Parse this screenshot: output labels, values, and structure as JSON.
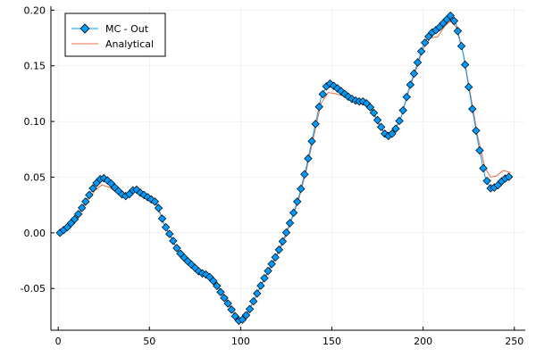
{
  "chart_data": {
    "type": "line",
    "title": "",
    "xlabel": "",
    "ylabel": "",
    "xlim": [
      -4,
      256
    ],
    "ylim": [
      -0.0875,
      0.2035
    ],
    "xticks": [
      0,
      50,
      100,
      150,
      200,
      250
    ],
    "xtick_labels": [
      "0",
      "50",
      "100",
      "150",
      "200",
      "250"
    ],
    "yticks": [
      -0.05,
      0.0,
      0.05,
      0.1,
      0.15,
      0.2
    ],
    "ytick_labels": [
      "-0.05",
      "0.00",
      "0.05",
      "0.10",
      "0.15",
      "0.20"
    ],
    "grid": true,
    "legend": {
      "position": "top-left"
    },
    "series": [
      {
        "name": "MC - Out",
        "color": "#009AFA",
        "marker": "diamond",
        "marker_stroke": "#000000",
        "line": true,
        "points": [
          [
            1,
            0.0
          ],
          [
            5,
            0.005
          ],
          [
            10,
            0.014
          ],
          [
            15,
            0.028
          ],
          [
            20,
            0.043
          ],
          [
            24,
            0.05
          ],
          [
            28,
            0.046
          ],
          [
            32,
            0.039
          ],
          [
            36,
            0.033
          ],
          [
            38,
            0.033
          ],
          [
            42,
            0.04
          ],
          [
            45,
            0.036
          ],
          [
            50,
            0.031
          ],
          [
            54,
            0.027
          ],
          [
            58,
            0.008
          ],
          [
            62,
            -0.004
          ],
          [
            66,
            -0.017
          ],
          [
            70,
            -0.024
          ],
          [
            74,
            -0.03
          ],
          [
            78,
            -0.036
          ],
          [
            82,
            -0.038
          ],
          [
            86,
            -0.045
          ],
          [
            90,
            -0.056
          ],
          [
            94,
            -0.066
          ],
          [
            98,
            -0.078
          ],
          [
            100,
            -0.08
          ],
          [
            104,
            -0.072
          ],
          [
            108,
            -0.058
          ],
          [
            112,
            -0.044
          ],
          [
            116,
            -0.031
          ],
          [
            120,
            -0.019
          ],
          [
            124,
            -0.004
          ],
          [
            128,
            0.013
          ],
          [
            132,
            0.033
          ],
          [
            136,
            0.059
          ],
          [
            140,
            0.09
          ],
          [
            144,
            0.121
          ],
          [
            148,
            0.135
          ],
          [
            152,
            0.131
          ],
          [
            156,
            0.126
          ],
          [
            160,
            0.121
          ],
          [
            164,
            0.118
          ],
          [
            168,
            0.118
          ],
          [
            172,
            0.111
          ],
          [
            176,
            0.098
          ],
          [
            180,
            0.086
          ],
          [
            184,
            0.09
          ],
          [
            188,
            0.104
          ],
          [
            192,
            0.128
          ],
          [
            196,
            0.148
          ],
          [
            200,
            0.168
          ],
          [
            204,
            0.179
          ],
          [
            208,
            0.183
          ],
          [
            212,
            0.19
          ],
          [
            215,
            0.195
          ],
          [
            218,
            0.188
          ],
          [
            222,
            0.161
          ],
          [
            226,
            0.121
          ],
          [
            230,
            0.082
          ],
          [
            234,
            0.05
          ],
          [
            237,
            0.04
          ],
          [
            240,
            0.041
          ],
          [
            244,
            0.048
          ],
          [
            248,
            0.051
          ]
        ]
      },
      {
        "name": "Analytical",
        "color": "#E26F46",
        "marker": "none",
        "line": true,
        "points": [
          [
            1,
            0.0
          ],
          [
            5,
            0.004
          ],
          [
            10,
            0.013
          ],
          [
            15,
            0.026
          ],
          [
            20,
            0.038
          ],
          [
            24,
            0.043
          ],
          [
            28,
            0.041
          ],
          [
            32,
            0.036
          ],
          [
            36,
            0.034
          ],
          [
            38,
            0.034
          ],
          [
            42,
            0.039
          ],
          [
            45,
            0.035
          ],
          [
            50,
            0.029
          ],
          [
            54,
            0.025
          ],
          [
            58,
            0.008
          ],
          [
            62,
            -0.005
          ],
          [
            66,
            -0.017
          ],
          [
            70,
            -0.023
          ],
          [
            74,
            -0.029
          ],
          [
            78,
            -0.035
          ],
          [
            82,
            -0.037
          ],
          [
            86,
            -0.043
          ],
          [
            90,
            -0.054
          ],
          [
            94,
            -0.064
          ],
          [
            98,
            -0.075
          ],
          [
            100,
            -0.078
          ],
          [
            104,
            -0.071
          ],
          [
            108,
            -0.058
          ],
          [
            112,
            -0.045
          ],
          [
            116,
            -0.033
          ],
          [
            120,
            -0.02
          ],
          [
            124,
            -0.006
          ],
          [
            128,
            0.012
          ],
          [
            132,
            0.031
          ],
          [
            136,
            0.056
          ],
          [
            140,
            0.086
          ],
          [
            144,
            0.116
          ],
          [
            148,
            0.126
          ],
          [
            152,
            0.125
          ],
          [
            156,
            0.123
          ],
          [
            160,
            0.12
          ],
          [
            164,
            0.116
          ],
          [
            168,
            0.117
          ],
          [
            172,
            0.11
          ],
          [
            176,
            0.096
          ],
          [
            180,
            0.087
          ],
          [
            184,
            0.091
          ],
          [
            188,
            0.104
          ],
          [
            192,
            0.127
          ],
          [
            196,
            0.146
          ],
          [
            200,
            0.165
          ],
          [
            204,
            0.175
          ],
          [
            208,
            0.176
          ],
          [
            212,
            0.186
          ],
          [
            215,
            0.19
          ],
          [
            218,
            0.185
          ],
          [
            222,
            0.161
          ],
          [
            226,
            0.124
          ],
          [
            230,
            0.086
          ],
          [
            234,
            0.058
          ],
          [
            237,
            0.05
          ],
          [
            240,
            0.051
          ],
          [
            244,
            0.056
          ],
          [
            248,
            0.054
          ]
        ]
      }
    ]
  }
}
